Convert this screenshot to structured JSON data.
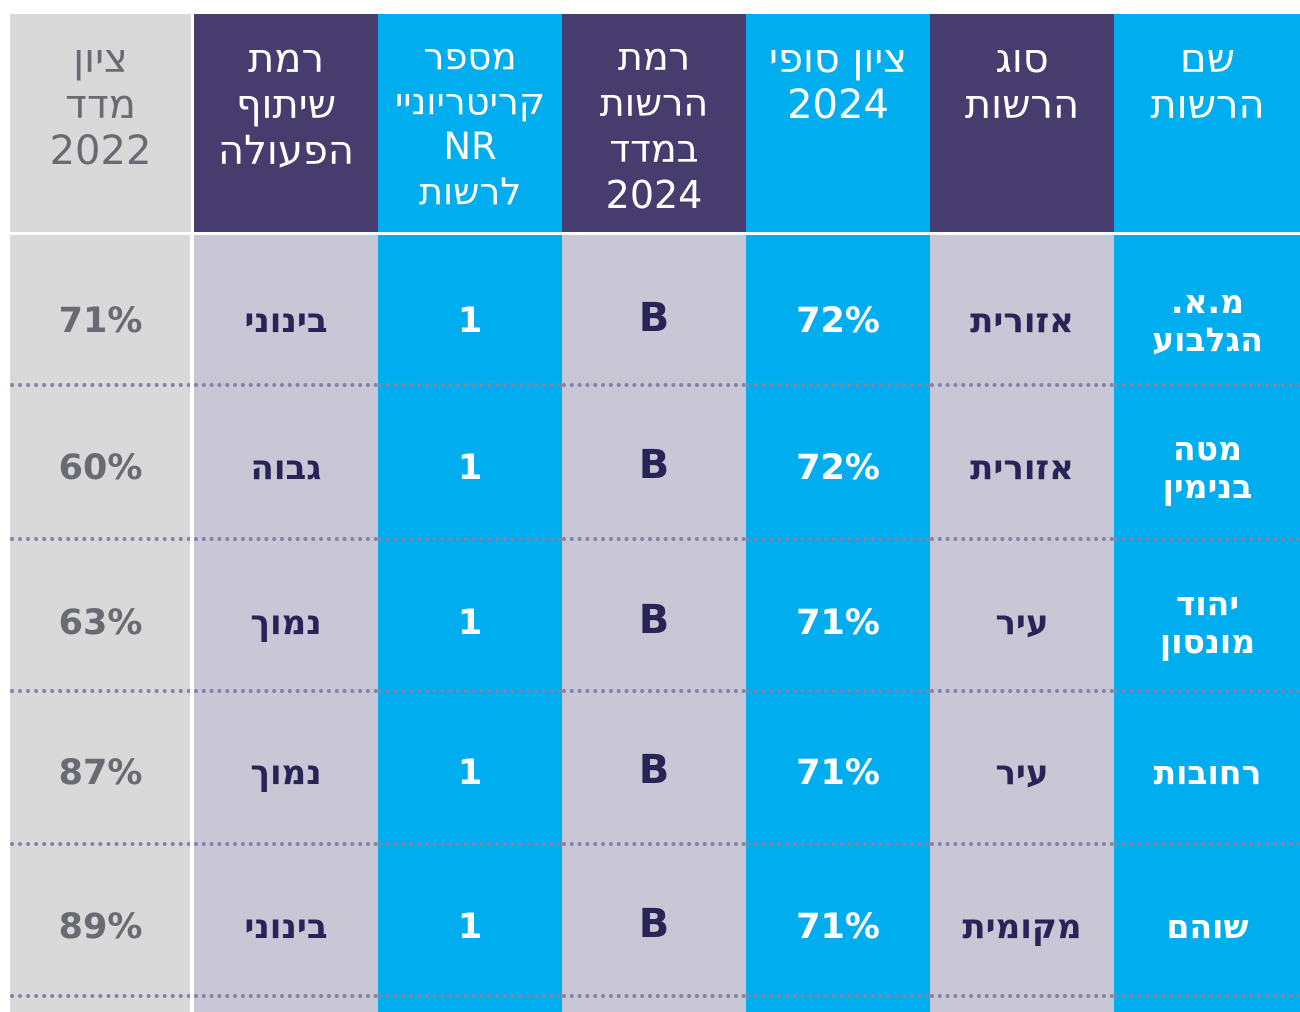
{
  "table": {
    "columns": [
      {
        "key": "index_score_2022",
        "header": "ציון\nמדד\n2022",
        "values": [
          "71%",
          "60%",
          "63%",
          "87%",
          "89%"
        ]
      },
      {
        "key": "cooperation_level",
        "header": "רמת\nשיתוף\nהפעולה",
        "values": [
          "בינוני",
          "גבוה",
          "נמוך",
          "נמוך",
          "בינוני"
        ]
      },
      {
        "key": "nr_criteria_count",
        "header": "מספר\nקריטריוניי\nNR\nלרשות",
        "values": [
          "1",
          "1",
          "1",
          "1",
          "1"
        ]
      },
      {
        "key": "authority_level_2024",
        "header": "רמת\nהרשות\nבמדד\n2024",
        "values": [
          "B",
          "B",
          "B",
          "B",
          "B"
        ]
      },
      {
        "key": "final_score_2024",
        "header": "ציון סופי\n2024",
        "values": [
          "72%",
          "72%",
          "71%",
          "71%",
          "71%"
        ]
      },
      {
        "key": "authority_type",
        "header": "סוג\nהרשות",
        "values": [
          "אזורית",
          "אזורית",
          "עיר",
          "עיר",
          "מקומית"
        ]
      },
      {
        "key": "authority_name",
        "header": "שם\nהרשות",
        "values": [
          "מ.א.\nהגלבוע",
          "מטה\nבנימין",
          "יהוד\nמונסון",
          "רחובות",
          "שוהם"
        ]
      }
    ]
  },
  "colors": {
    "cyan": "#00aeef",
    "navy": "#463c6d",
    "gray_purple": "#c9c7d5",
    "light_gray": "#d9d9da",
    "dark_text": "#2a2358",
    "gray_text": "#6a6a72",
    "white": "#ffffff"
  }
}
